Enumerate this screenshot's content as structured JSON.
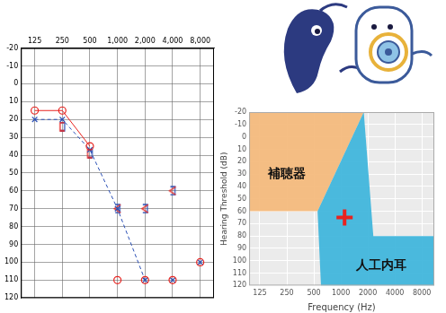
{
  "chart_data": [
    {
      "type": "line",
      "categories": [
        "125",
        "250",
        "500",
        "1,000",
        "2,000",
        "4,000",
        "8,000"
      ],
      "ylim": [
        -20,
        120
      ],
      "yticks": [
        -20,
        -10,
        0,
        10,
        20,
        30,
        40,
        50,
        60,
        70,
        80,
        90,
        100,
        110,
        120
      ],
      "grid": true,
      "series": [
        {
          "color": "#e8231f",
          "marker": "circle",
          "line_style": "solid",
          "values": [
            15,
            15,
            35,
            null,
            null,
            null,
            null
          ]
        },
        {
          "color": "#e8231f",
          "marker": "circle",
          "line_style": "none",
          "values": [
            null,
            null,
            null,
            110,
            110,
            110,
            100
          ]
        },
        {
          "color": "#2a4fb5",
          "marker": "x",
          "line_style": "dashed",
          "values": [
            20,
            20,
            37,
            70,
            110,
            null,
            null
          ]
        },
        {
          "color": "#2a4fb5",
          "marker": "x",
          "line_style": "none",
          "values": [
            null,
            null,
            null,
            null,
            null,
            110,
            100
          ]
        },
        {
          "color": "#e8231f",
          "marker": "bracket_left",
          "line_style": "none",
          "values": [
            null,
            24,
            39,
            null,
            null,
            null,
            null
          ]
        },
        {
          "color": "#e8231f",
          "marker": "less_than",
          "line_style": "none",
          "values": [
            null,
            null,
            null,
            70,
            70,
            60,
            null
          ]
        },
        {
          "color": "#2a4fb5",
          "marker": "bracket_right",
          "line_style": "none",
          "values": [
            null,
            24,
            39,
            70,
            70,
            60,
            null
          ]
        }
      ]
    },
    {
      "type": "scatter",
      "x_label": "Frequency (Hz)",
      "y_label": "Hearing Threshold (dB)",
      "log": "x",
      "xlim": [
        95,
        11000
      ],
      "xticks": [
        125,
        250,
        500,
        1000,
        2000,
        4000,
        8000
      ],
      "ylim": [
        -20,
        120
      ],
      "yticks": [
        -20,
        -10,
        0,
        10,
        20,
        30,
        40,
        50,
        60,
        70,
        80,
        90,
        100,
        110,
        120
      ],
      "grid": true,
      "areas": [
        {
          "color": "#f4b979",
          "points": [
            [
              95,
              -20
            ],
            [
              1800,
              -20
            ],
            [
              550,
              60
            ],
            [
              95,
              60
            ]
          ]
        },
        {
          "color": "#3cb4db",
          "points": [
            [
              550,
              60
            ],
            [
              1800,
              -20
            ],
            [
              2300,
              80
            ],
            [
              11000,
              80
            ],
            [
              11000,
              120
            ],
            [
              600,
              120
            ]
          ]
        }
      ],
      "annotations": [
        {
          "text": "補聴器",
          "x": 250,
          "y": 30
        },
        {
          "text": "人工内耳",
          "x": 2830,
          "y": 104
        }
      ],
      "series": [
        {
          "color": "#e8231f",
          "marker": "cross",
          "line_style": "none",
          "x": [
            1100
          ],
          "values": [
            65
          ]
        }
      ]
    }
  ]
}
